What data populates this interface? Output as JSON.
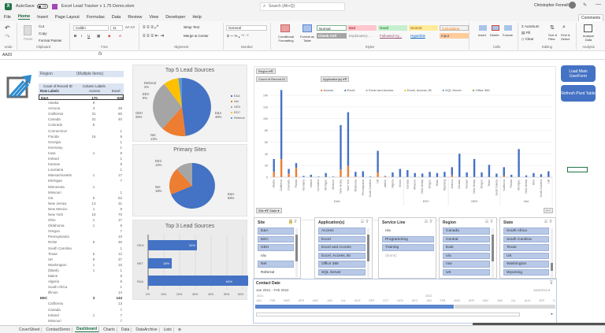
{
  "titlebar": {
    "autosave_label": "AutoSave",
    "autosave_state": "Off",
    "doc_title": "Excel Lead Tracker v 1.75 Demo.xlsm",
    "search_placeholder": "Search (Alt+Q)",
    "user_name": "Christopher Fennell",
    "comments_label": "Comments"
  },
  "menu": {
    "items": [
      "File",
      "Home",
      "Insert",
      "Page Layout",
      "Formulas",
      "Data",
      "Review",
      "View",
      "Developer",
      "Help"
    ],
    "active": "Home"
  },
  "ribbon": {
    "undo_label": "Undo",
    "clipboard": {
      "paste": "Paste",
      "cut": "Cut",
      "copy": "Copy",
      "format_painter": "Format Painter",
      "label": "Clipboard"
    },
    "font": {
      "name": "Calibri",
      "size": "11",
      "label": "Font"
    },
    "alignment": {
      "wrap": "Wrap Text",
      "merge": "Merge & Center",
      "label": "Alignment"
    },
    "number": {
      "format": "General",
      "label": "Number"
    },
    "styles": {
      "conditional": "Conditional Formatting",
      "format_table": "Format as Table",
      "cells": [
        "Normal",
        "Bad",
        "Good",
        "Neutral",
        "Calculation",
        "Check Cell",
        "Explanatory ...",
        "Followed Hy...",
        "Hyperlink",
        "Input"
      ],
      "label": "Styles"
    },
    "cells": {
      "insert": "Insert",
      "delete": "Delete",
      "format": "Format",
      "label": "Cells"
    },
    "editing": {
      "autosum": "AutoSum",
      "fill": "Fill",
      "clear": "Clear",
      "sort": "Sort & Filter",
      "find": "Find & Select",
      "label": "Editing"
    },
    "analysis": {
      "analyze": "Analyze Data",
      "label": "Analysis"
    }
  },
  "formula_bar": {
    "name_box": "AA20",
    "fx": "fx",
    "value": ""
  },
  "pivot": {
    "filter_label": "Region",
    "filter_value": "(Multiple Items)",
    "values_label": "Count of Record ID",
    "col_labels": "Column Labels",
    "row_labels": "Row Labels",
    "col1": "Access",
    "col2": "Excel",
    "rows": [
      {
        "name": "E&A",
        "access": "170",
        "excel": "938",
        "group": true
      },
      {
        "name": "Alaska",
        "access": "9",
        "excel": ""
      },
      {
        "name": "Arizona",
        "access": "3",
        "excel": "26"
      },
      {
        "name": "California",
        "access": "31",
        "excel": "80"
      },
      {
        "name": "Canada",
        "access": "31",
        "excel": "40"
      },
      {
        "name": "Colorado",
        "access": "6",
        "excel": ""
      },
      {
        "name": "Connecticut",
        "access": "",
        "excel": "1"
      },
      {
        "name": "Florida",
        "access": "16",
        "excel": "8"
      },
      {
        "name": "Georgia",
        "access": "",
        "excel": "1"
      },
      {
        "name": "Germany",
        "access": "",
        "excel": "1"
      },
      {
        "name": "Iowa",
        "access": "1",
        "excel": "8"
      },
      {
        "name": "Ireland",
        "access": "",
        "excel": "1"
      },
      {
        "name": "Kansas",
        "access": "",
        "excel": "9"
      },
      {
        "name": "Louisiana",
        "access": "",
        "excel": "1"
      },
      {
        "name": "Massachusetts",
        "access": "1",
        "excel": "17"
      },
      {
        "name": "Michigan",
        "access": "",
        "excel": "7"
      },
      {
        "name": "Minnesota",
        "access": "1",
        "excel": ""
      },
      {
        "name": "Missouri",
        "access": "",
        "excel": "1"
      },
      {
        "name": "n/a",
        "access": "9",
        "excel": "62"
      },
      {
        "name": "New Jersey",
        "access": "13",
        "excel": "31"
      },
      {
        "name": "New Mexico",
        "access": "1",
        "excel": "8"
      },
      {
        "name": "New York",
        "access": "19",
        "excel": "70"
      },
      {
        "name": "Ohio",
        "access": "1",
        "excel": "17"
      },
      {
        "name": "Oklahoma",
        "access": "1",
        "excel": "8"
      },
      {
        "name": "Oregon",
        "access": "",
        "excel": "7"
      },
      {
        "name": "Pennsylvania",
        "access": "",
        "excel": "10"
      },
      {
        "name": "ROW",
        "access": "9",
        "excel": "30"
      },
      {
        "name": "South Carolina",
        "access": "",
        "excel": "1"
      },
      {
        "name": "Texas",
        "access": "5",
        "excel": "12"
      },
      {
        "name": "UK",
        "access": "8",
        "excel": "37"
      },
      {
        "name": "Washington",
        "access": "1",
        "excel": "15"
      },
      {
        "name": "(blank)",
        "access": "1",
        "excel": "1"
      },
      {
        "name": "Maine",
        "access": "",
        "excel": "8"
      },
      {
        "name": "Algeria",
        "access": "",
        "excel": "8"
      },
      {
        "name": "South Africa",
        "access": "",
        "excel": "1"
      },
      {
        "name": "Illinois",
        "access": "",
        "excel": "14"
      },
      {
        "name": "EEC",
        "access": "3",
        "excel": "143",
        "group": true
      },
      {
        "name": "California",
        "access": "",
        "excel": "13"
      },
      {
        "name": "Canada",
        "access": "",
        "excel": "7"
      },
      {
        "name": "Ireland",
        "access": "1",
        "excel": "7"
      },
      {
        "name": "Missouri",
        "access": "",
        "excel": "7"
      },
      {
        "name": "n/a",
        "access": "",
        "excel": "57"
      }
    ]
  },
  "chart_data": [
    {
      "type": "pie",
      "title": "Top 5 Lead Sources",
      "categories": [
        "E&A",
        "Net",
        "GEH",
        "EEC",
        "Referral"
      ],
      "values": [
        48,
        13,
        26,
        9,
        2
      ],
      "legend": [
        "E&A",
        "Net",
        "GEH",
        "EEC",
        "Referral"
      ],
      "colors": [
        "#4472c4",
        "#ed7d31",
        "#a5a5a5",
        "#ffc000",
        "#5b9bd5"
      ]
    },
    {
      "type": "pie",
      "title": "Primary Sites",
      "categories": [
        "E&A",
        "Net",
        "EEC"
      ],
      "values": [
        68,
        18,
        14
      ],
      "colors": [
        "#4472c4",
        "#ed7d31",
        "#a5a5a5"
      ]
    },
    {
      "type": "bar",
      "orientation": "horizontal",
      "title": "Top 3 Lead Sources",
      "categories": [
        "E&A",
        "NET",
        "GEH"
      ],
      "values": [
        64,
        15,
        31
      ],
      "xticks": [
        "0%",
        "10%",
        "20%",
        "30%",
        "40%",
        "50%",
        "60%",
        "70%"
      ]
    },
    {
      "type": "bar",
      "stacked": true,
      "title": "",
      "y_label": "Count of Record ID",
      "yticks": [
        0,
        20,
        40,
        60,
        80,
        100,
        120,
        140
      ],
      "legend": [
        "Access",
        "Excel",
        "Excel and Access",
        "Excel, Access, BI",
        "SQL Server",
        "Office 365"
      ],
      "groups": [
        "E&A",
        "EEC",
        "GEH",
        "Net"
      ],
      "categories": [
        "Alaska",
        "California",
        "Colorado",
        "Florida",
        "Germany",
        "Ireland",
        "Louisiana",
        "Michigan",
        "Missouri",
        "New Jersey",
        "New York",
        "Oklahoma",
        "Pennsylvania",
        "South Carolina",
        "UK",
        "(blank)",
        "Algeria",
        "Illinois",
        "Canada",
        "Missouri",
        "New Jersey",
        "Oregon",
        "Texas",
        "Wyoming",
        "Arizona",
        "Canada",
        "Kansas",
        "New Jersey",
        "Oregon",
        "Texas",
        "South Dakota",
        "California",
        "Florida",
        "Michigan",
        "New Jersey",
        "Ohio",
        "South Carolina",
        "UK"
      ],
      "series": [
        {
          "name": "Access",
          "values": [
            9,
            31,
            6,
            16,
            0,
            0,
            0,
            0,
            0,
            13,
            19,
            1,
            0,
            0,
            8,
            1,
            0,
            0,
            0,
            0,
            0,
            0,
            0,
            0,
            3,
            0,
            0,
            0,
            0,
            0,
            0,
            2,
            0,
            0,
            0,
            0,
            0,
            0
          ]
        },
        {
          "name": "Excel",
          "values": [
            22,
            118,
            8,
            8,
            2,
            4,
            1,
            7,
            1,
            76,
            92,
            8,
            10,
            1,
            37,
            1,
            8,
            14,
            12,
            7,
            6,
            9,
            7,
            9,
            14,
            40,
            8,
            31,
            8,
            21,
            6,
            15,
            4,
            48,
            3,
            7,
            5,
            10
          ]
        }
      ]
    }
  ],
  "main_chart": {
    "region_filter": "Region",
    "values_label": "Count of Record ID",
    "app_filter": "Application(s)",
    "site_btn": "Site",
    "state_btn": "State"
  },
  "slicers": [
    {
      "title": "Site",
      "items": [
        {
          "l": "E&A",
          "s": "on"
        },
        {
          "l": "EEC",
          "s": "on"
        },
        {
          "l": "GEH",
          "s": "on"
        },
        {
          "l": "n/a",
          "s": "off"
        },
        {
          "l": "Net",
          "s": "on"
        },
        {
          "l": "Referral",
          "s": "off"
        }
      ]
    },
    {
      "title": "Application(s)",
      "items": [
        {
          "l": "Access",
          "s": "on"
        },
        {
          "l": "Excel",
          "s": "on"
        },
        {
          "l": "Excel and Access",
          "s": "on"
        },
        {
          "l": "Excel, Access, BI",
          "s": "on"
        },
        {
          "l": "Office 365",
          "s": "on"
        },
        {
          "l": "SQL Server",
          "s": "on"
        }
      ]
    },
    {
      "title": "Service Line",
      "items": [
        {
          "l": "n/a",
          "s": "off"
        },
        {
          "l": "Programming",
          "s": "on"
        },
        {
          "l": "Training",
          "s": "on"
        },
        {
          "l": "(blank)",
          "s": "dim"
        }
      ]
    },
    {
      "title": "Region",
      "items": [
        {
          "l": "Canada",
          "s": "on"
        },
        {
          "l": "Central",
          "s": "on"
        },
        {
          "l": "East",
          "s": "on"
        },
        {
          "l": "n/a",
          "s": "on"
        },
        {
          "l": "row",
          "s": "on"
        },
        {
          "l": "UK",
          "s": "on"
        }
      ]
    },
    {
      "title": "State",
      "items": [
        {
          "l": "South Africa",
          "s": "on"
        },
        {
          "l": "South Carolina",
          "s": "on"
        },
        {
          "l": "Texas",
          "s": "on"
        },
        {
          "l": "UK",
          "s": "on"
        },
        {
          "l": "Washington",
          "s": "on"
        },
        {
          "l": "Wyoming",
          "s": "on"
        }
      ]
    }
  ],
  "timeline": {
    "title": "Contact Date",
    "range": "Jan 2021 - Feb 2022",
    "mode": "MONTHS",
    "year1": "2021",
    "year2": "2022",
    "months": [
      "JAN",
      "FEB",
      "MAR",
      "APR",
      "MAY",
      "JUN",
      "JUL",
      "AUG",
      "SEP",
      "OCT",
      "NOV",
      "DEC",
      "JAN",
      "FEB",
      "MAR",
      "APR",
      "MAY",
      "JUN",
      "JUL",
      "AUG",
      "SEP",
      "O"
    ]
  },
  "buttons": {
    "load": "Load Main UserForm",
    "refresh": "Refresh Pivot Table"
  },
  "sheet_tabs": [
    "CoverSheet",
    "ContactDemo",
    "Dashboard",
    "Charts",
    "Data",
    "DataArchive",
    "Lists"
  ],
  "active_tab": "Dashboard"
}
